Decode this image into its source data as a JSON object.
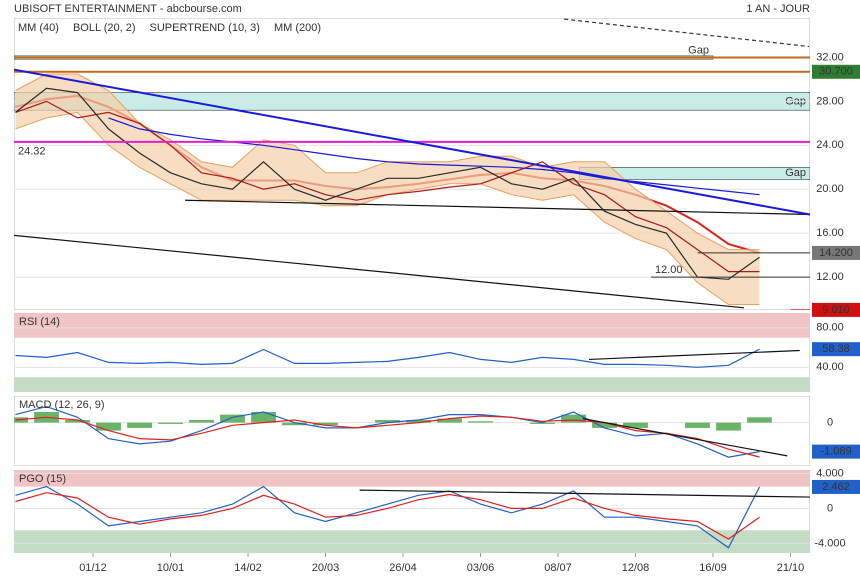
{
  "header": {
    "title": "UBISOFT ENTERTAINMENT - abcbourse.com",
    "period": "1 AN - JOUR"
  },
  "chart_data": [
    {
      "type": "line",
      "ylim": [
        9.0,
        35.6
      ],
      "yticks": [
        {
          "value": 12,
          "label": "12.00"
        },
        {
          "value": 16,
          "label": "16.00"
        },
        {
          "value": 20,
          "label": "20.00"
        },
        {
          "value": 24,
          "label": "24.00"
        },
        {
          "value": 28,
          "label": "28.00"
        },
        {
          "value": 32,
          "label": "32.00"
        }
      ],
      "xlim": [
        -0.5,
        256.3
      ],
      "x": [
        0,
        10,
        20,
        30,
        40,
        50,
        60,
        70,
        80,
        90,
        100,
        110,
        120,
        130,
        140,
        150,
        160,
        170,
        180,
        190,
        200,
        210,
        220,
        230,
        240
      ],
      "series": [
        {
          "name": "MM (40)",
          "color": "#e0201c",
          "values": [
            27.5,
            28.2,
            28.5,
            27.5,
            26.0,
            24.0,
            22.0,
            20.8,
            20.8,
            20.8,
            20.3,
            20.0,
            20.2,
            20.5,
            20.9,
            21.3,
            21.5,
            21.0,
            20.8,
            20.3,
            19.5,
            18.5,
            17.0,
            15.0,
            14.2
          ]
        },
        {
          "name": "BOLL (20, 2)",
          "color": "#e8a060",
          "upper": [
            29,
            30.5,
            30.5,
            29,
            26,
            24.5,
            22.5,
            22,
            24.5,
            24,
            21.5,
            21.5,
            22.5,
            22.5,
            22.5,
            23,
            23,
            22,
            22.5,
            22.5,
            20,
            18,
            16,
            14.5,
            14.5
          ],
          "lower": [
            25.5,
            26.5,
            27,
            24,
            22,
            20.5,
            19,
            19,
            19,
            19,
            18.5,
            18.5,
            19.5,
            20,
            20.5,
            20.5,
            19.5,
            19,
            19.5,
            17,
            15.5,
            14.5,
            11.5,
            9.5,
            9.5
          ]
        },
        {
          "name": "SUPERTREND (10, 3)",
          "color": "#b01818",
          "values": [
            27,
            28,
            26.5,
            27,
            26,
            24,
            21.5,
            21,
            20,
            20.5,
            19.5,
            19,
            19.5,
            19.8,
            20.2,
            20.5,
            21.5,
            22.5,
            20.5,
            19.5,
            17.5,
            16.5,
            14.5,
            12.5,
            12.5
          ]
        },
        {
          "name": "MM (200)",
          "color": "#1a1adc",
          "values": [
            null,
            null,
            null,
            26.5,
            25.5,
            25.0,
            24.6,
            24.3,
            24.0,
            23.6,
            23.2,
            22.8,
            22.5,
            22.3,
            22.2,
            22.1,
            22.0,
            21.8,
            21.5,
            21.0,
            20.7,
            20.4,
            20.1,
            19.8,
            19.5
          ]
        },
        {
          "color": "#2b2b2b",
          "values": [
            27.0,
            29.2,
            28.8,
            25.5,
            23.3,
            21.5,
            20.5,
            20.0,
            22.5,
            20.0,
            19.0,
            20.0,
            21.0,
            21.0,
            21.5,
            22.0,
            20.5,
            20.0,
            21.0,
            18.0,
            16.8,
            16.0,
            12.0,
            11.8,
            13.8
          ]
        }
      ],
      "zones": [
        {
          "from": 31.85,
          "to": 32.15,
          "x": [
            -0.5,
            225
          ],
          "color": "#f4f0c0",
          "label": "Gap"
        },
        {
          "from": 27.2,
          "to": 28.8,
          "x": [
            -0.5,
            256.3
          ],
          "color": "#c8ece8",
          "label": "Gap"
        },
        {
          "from": 20.9,
          "to": 22.0,
          "x": [
            182,
            256.3
          ],
          "color": "#c8ece8",
          "label": "Gap"
        }
      ],
      "levels": [
        {
          "value": 32.0,
          "color": "#c06a1a"
        },
        {
          "value": 30.7,
          "color": "#c06a1a",
          "label": "30.700",
          "box": "#2e7d32"
        },
        {
          "value": 24.32,
          "color": "#e020d0",
          "label": "24.32"
        },
        {
          "value": 14.2,
          "color": "#333",
          "x": [
            220,
            256.3
          ],
          "label": "14.200",
          "box": "#777"
        },
        {
          "value": 12.0,
          "color": "#333",
          "x": [
            205,
            256.3
          ],
          "label": "12.00"
        },
        {
          "value": 9.01,
          "color": "#c00",
          "x": [
            250,
            256.3
          ],
          "label": "9.010",
          "box": "#d01010"
        }
      ],
      "trendlines": [
        {
          "x": [
            54.7,
            256.3
          ],
          "y": [
            19.0,
            17.7
          ],
          "color": "#111"
        },
        {
          "x": [
            -0.5,
            256.3
          ],
          "y": [
            30.9,
            17.7
          ],
          "color": "#1a1adc"
        },
        {
          "x": [
            -0.5,
            235
          ],
          "y": [
            15.8,
            9.2
          ],
          "color": "#111"
        },
        {
          "x": [
            177,
            256
          ],
          "y": [
            35.5,
            33.0
          ],
          "color": "#333",
          "dash": true
        }
      ]
    },
    {
      "type": "line",
      "title": "RSI (14)",
      "ylim": [
        15,
        95
      ],
      "yticks": [
        {
          "value": 40,
          "label": "40.00"
        },
        {
          "value": 80,
          "label": "80.00"
        }
      ],
      "xlim": [
        -0.5,
        256.3
      ],
      "x": [
        0,
        10,
        20,
        30,
        40,
        50,
        60,
        70,
        80,
        90,
        100,
        110,
        120,
        130,
        140,
        150,
        160,
        170,
        180,
        190,
        200,
        210,
        220,
        230,
        240
      ],
      "series": [
        {
          "color": "#2060c8",
          "values": [
            52,
            50,
            55,
            45,
            44,
            45,
            43,
            44,
            58,
            44,
            44,
            45,
            46,
            50,
            55,
            48,
            45,
            50,
            48,
            43,
            43,
            42,
            40,
            42,
            58.38
          ],
          "value_labels": [
            null,
            null,
            null,
            null,
            null,
            null,
            null,
            null,
            null,
            null,
            null,
            null,
            null,
            null,
            null,
            null,
            null,
            null,
            null,
            null,
            null,
            null,
            null,
            null,
            "58.38"
          ]
        }
      ],
      "zones": [
        {
          "from": 70,
          "to": 95,
          "color": "#f0c4c4"
        },
        {
          "from": 15,
          "to": 30,
          "color": "#c4dcc4"
        }
      ],
      "trendlines": [
        {
          "x": [
            185,
            253
          ],
          "y": [
            48,
            57
          ],
          "color": "#111"
        }
      ]
    },
    {
      "type": "line",
      "title": "MACD (12, 26, 9)",
      "ylim": [
        -1.63,
        1.0
      ],
      "yticks": [
        0
      ],
      "xlim": [
        -0.5,
        256.3
      ],
      "x": [
        0,
        10,
        20,
        30,
        40,
        50,
        60,
        70,
        80,
        90,
        100,
        110,
        120,
        130,
        140,
        150,
        160,
        170,
        180,
        190,
        200,
        210,
        220,
        230,
        240
      ],
      "histogram": [
        0.2,
        0.4,
        0.1,
        -0.3,
        -0.2,
        -0.05,
        0.1,
        0.3,
        0.4,
        -0.1,
        -0.1,
        0,
        0.1,
        0.1,
        0.15,
        0.05,
        0,
        -0.05,
        0.3,
        -0.2,
        -0.2,
        0,
        -0.2,
        -0.3,
        0.2
      ],
      "series": [
        {
          "color": "#2060c8",
          "values": [
            0.3,
            0.6,
            0.2,
            -0.6,
            -0.8,
            -0.7,
            -0.3,
            0.2,
            0.4,
            0,
            -0.2,
            -0.2,
            0,
            0.1,
            0.3,
            0.3,
            0.2,
            0,
            0.4,
            -0.2,
            -0.5,
            -0.4,
            -0.8,
            -1.3,
            -1.089
          ],
          "value_labels": [
            null,
            null,
            null,
            null,
            null,
            null,
            null,
            null,
            null,
            null,
            null,
            null,
            null,
            null,
            null,
            null,
            null,
            null,
            null,
            null,
            null,
            null,
            null,
            null,
            "-1.089"
          ]
        },
        {
          "color": "#e0201c",
          "values": [
            0.1,
            0.2,
            0.1,
            -0.3,
            -0.6,
            -0.65,
            -0.4,
            -0.1,
            0.0,
            0.1,
            -0.1,
            -0.2,
            -0.1,
            0.0,
            0.15,
            0.25,
            0.2,
            0.05,
            0.1,
            0.0,
            -0.3,
            -0.4,
            -0.6,
            -1.0,
            -1.29
          ]
        }
      ],
      "trendlines": [
        {
          "x": [
            183,
            249
          ],
          "y": [
            0.15,
            -1.25
          ],
          "color": "#111"
        }
      ]
    },
    {
      "type": "line",
      "title": "PGO (15)",
      "ylim": [
        -5.1,
        4.4
      ],
      "yticks": [
        {
          "value": -4,
          "label": "-4.000"
        },
        0,
        {
          "value": 4,
          "label": "4.000"
        }
      ],
      "xlim": [
        -0.5,
        256.3
      ],
      "x": [
        0,
        10,
        20,
        30,
        40,
        50,
        60,
        70,
        80,
        90,
        100,
        110,
        120,
        130,
        140,
        150,
        160,
        170,
        180,
        190,
        200,
        210,
        220,
        230,
        240
      ],
      "xticks": [
        {
          "value": 25,
          "label": "01/12"
        },
        {
          "value": 50,
          "label": "10/01"
        },
        {
          "value": 75,
          "label": "14/02"
        },
        {
          "value": 100,
          "label": "20/03"
        },
        {
          "value": 125,
          "label": "26/04"
        },
        {
          "value": 150,
          "label": "03/06"
        },
        {
          "value": 175,
          "label": "08/07"
        },
        {
          "value": 200,
          "label": "12/08"
        },
        {
          "value": 225,
          "label": "16/09"
        },
        {
          "value": 250,
          "label": "21/10"
        }
      ],
      "series": [
        {
          "color": "#2060c8",
          "values": [
            1.5,
            2.5,
            0.5,
            -2,
            -1.5,
            -1,
            -0.5,
            0.5,
            2.5,
            -0.5,
            -1.5,
            -0.5,
            0.5,
            1.5,
            2,
            0.5,
            -0.5,
            0.5,
            2,
            -1,
            -1,
            -1.5,
            -2,
            -4.5,
            2.462
          ],
          "value_labels": [
            null,
            null,
            null,
            null,
            null,
            null,
            null,
            null,
            null,
            null,
            null,
            null,
            null,
            null,
            null,
            null,
            null,
            null,
            null,
            null,
            null,
            null,
            null,
            null,
            "2.462"
          ]
        },
        {
          "color": "#e0201c",
          "values": [
            0.8,
            1.8,
            1.2,
            -1,
            -1.8,
            -1.2,
            -0.8,
            0,
            1.5,
            0.5,
            -1,
            -0.8,
            0,
            1,
            1.6,
            1,
            0,
            0,
            1.2,
            0,
            -0.8,
            -1.2,
            -1.5,
            -3.5,
            -1.0
          ]
        }
      ],
      "zones": [
        {
          "from": 2.5,
          "to": 4.4,
          "color": "#f0c4c4"
        },
        {
          "from": -5.1,
          "to": -2.5,
          "color": "#c4dcc4"
        }
      ],
      "trendlines": [
        {
          "x": [
            111,
            256.3
          ],
          "y": [
            2.1,
            1.3
          ],
          "color": "#111"
        }
      ]
    }
  ]
}
